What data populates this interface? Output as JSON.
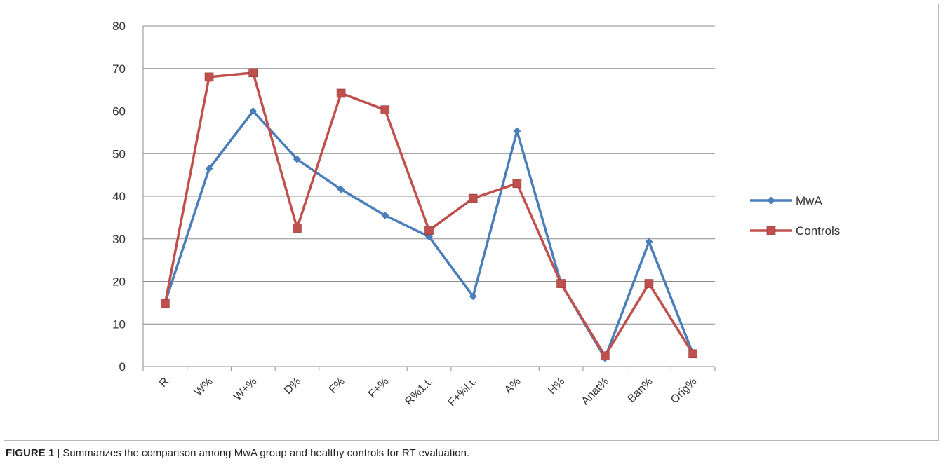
{
  "chart_data": {
    "type": "line",
    "categories": [
      "R",
      "W%",
      "W+%",
      "D%",
      "F%",
      "F+%",
      "R%1.t.",
      "F+%l.t.",
      "A%",
      "H%",
      "Anat%",
      "Ban%",
      "Orig%"
    ],
    "series": [
      {
        "name": "MwA",
        "color": "#4a7ebb",
        "marker": "diamond",
        "values": [
          15,
          46.5,
          60,
          48.7,
          41.6,
          35.5,
          30.5,
          16.5,
          55.3,
          19.5,
          2,
          29.3,
          3
        ]
      },
      {
        "name": "Controls",
        "color": "#c0504d",
        "marker": "square",
        "values": [
          14.8,
          68,
          69,
          32.5,
          64.2,
          60.3,
          32,
          39.5,
          43,
          19.5,
          2.5,
          19.5,
          3
        ]
      }
    ],
    "ylim": [
      0,
      80
    ],
    "yticks": [
      0,
      10,
      20,
      30,
      40,
      50,
      60,
      70,
      80
    ],
    "grid": true,
    "legend": "right"
  },
  "caption": {
    "label": "FIGURE 1",
    "text": " | Summarizes the comparison among MwA group and healthy controls for RT evaluation."
  }
}
